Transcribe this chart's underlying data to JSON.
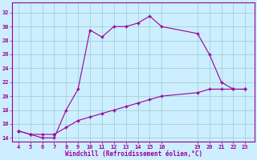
{
  "x_main": [
    4,
    5,
    6,
    7,
    8,
    9,
    10,
    11,
    12,
    13,
    14,
    15,
    16,
    19,
    20,
    21,
    22,
    23
  ],
  "y_main": [
    15,
    14.5,
    14,
    14,
    18,
    21,
    29.5,
    28.5,
    30,
    30,
    30.5,
    31.5,
    30,
    29,
    26,
    22,
    21,
    21
  ],
  "x_ref": [
    4,
    5,
    6,
    7,
    8,
    9,
    10,
    11,
    12,
    13,
    14,
    15,
    16,
    19,
    20,
    21,
    22,
    23
  ],
  "y_ref": [
    15,
    14.5,
    14.5,
    14.5,
    15.5,
    16.5,
    17,
    17.5,
    18,
    18.5,
    19,
    19.5,
    20,
    20.5,
    21,
    21,
    21,
    21
  ],
  "xticks": [
    4,
    5,
    6,
    7,
    8,
    9,
    10,
    11,
    12,
    13,
    14,
    15,
    16,
    19,
    20,
    21,
    22,
    23
  ],
  "yticks": [
    14,
    16,
    18,
    20,
    22,
    24,
    26,
    28,
    30,
    32
  ],
  "ylim": [
    13.5,
    33.5
  ],
  "xlim": [
    3.5,
    23.8
  ],
  "xlabel": "Windchill (Refroidissement éolien,°C)",
  "line_color": "#990099",
  "bg_color": "#cceeff",
  "grid_color": "#99cccc",
  "tick_color": "#990099",
  "label_color": "#990099"
}
